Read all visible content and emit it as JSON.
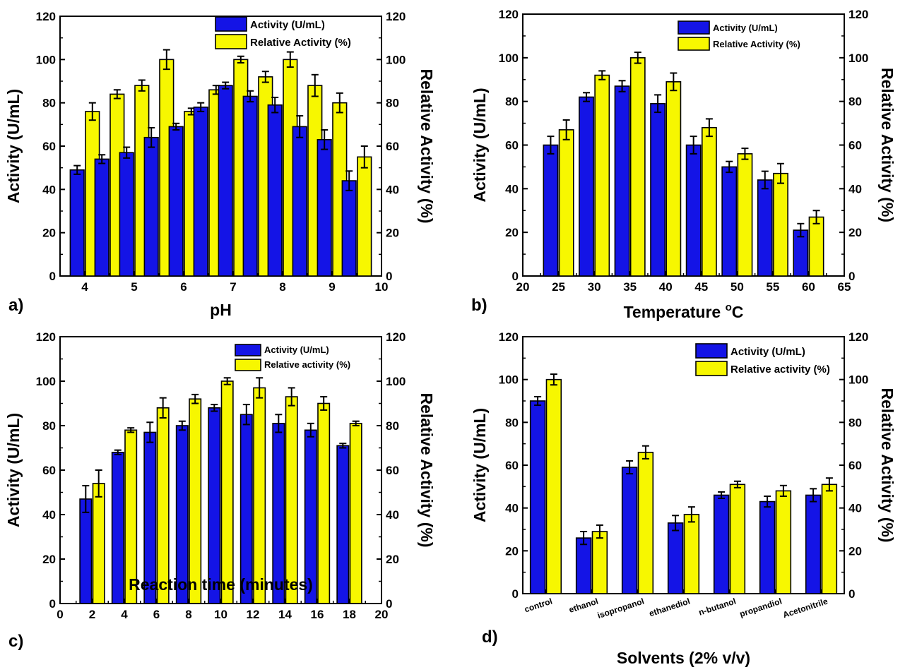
{
  "colors": {
    "activity": "#1414e6",
    "relative": "#f7f700",
    "stroke": "#000000"
  },
  "chart_data": [
    {
      "panel": "a)",
      "type": "bar",
      "xlabel": "pH",
      "ylabel": "Activity (U/mL)",
      "y2label": "Relative Activity (%)",
      "xaxis": "numeric",
      "xlim": [
        3.5,
        10
      ],
      "xticks": [
        4,
        5,
        6,
        7,
        8,
        9,
        10
      ],
      "ylim": [
        0,
        120
      ],
      "yticks": [
        0,
        20,
        40,
        60,
        80,
        100,
        120
      ],
      "y2ticks": [
        0,
        20,
        40,
        60,
        80,
        100,
        120
      ],
      "x": [
        4,
        4.5,
        5,
        5.5,
        6,
        6.5,
        7,
        7.5,
        8,
        8.5,
        9,
        9.5
      ],
      "legend_position": "top-right",
      "series": [
        {
          "name": "Activity (U/mL)",
          "values": [
            49,
            54,
            57,
            64,
            69,
            78,
            88,
            83,
            79,
            69,
            63,
            44
          ],
          "errors": [
            2,
            2,
            2.5,
            4.5,
            1.5,
            2,
            1.5,
            2.5,
            3.5,
            5,
            4.5,
            4.5
          ]
        },
        {
          "name": "Relative Activity (%)",
          "values": [
            76,
            84,
            88,
            100,
            76,
            86,
            100,
            92,
            100,
            88,
            80,
            55
          ],
          "errors": [
            4,
            2,
            2.5,
            4.5,
            1.5,
            2,
            1.5,
            2.5,
            3.5,
            5,
            4.5,
            5
          ]
        }
      ]
    },
    {
      "panel": "b)",
      "type": "bar",
      "xlabel": "Temperature ",
      "xlabel_sup": "o",
      "xlabel_after": "C",
      "ylabel": "Activity (U/mL)",
      "y2label": "Relative Activity (%)",
      "xaxis": "numeric",
      "xlim": [
        20,
        65
      ],
      "xticks": [
        20,
        25,
        30,
        35,
        40,
        45,
        50,
        55,
        60,
        65
      ],
      "ylim": [
        0,
        120
      ],
      "yticks": [
        0,
        20,
        40,
        60,
        80,
        100,
        120
      ],
      "y2ticks": [
        0,
        20,
        40,
        60,
        80,
        100,
        120
      ],
      "x": [
        25,
        30,
        35,
        40,
        45,
        50,
        55,
        60
      ],
      "legend_position": "top-right",
      "series": [
        {
          "name": "Activity (U/mL)",
          "values": [
            60,
            82,
            87,
            79,
            60,
            50,
            44,
            21
          ],
          "errors": [
            4,
            2,
            2.5,
            4,
            4,
            2.5,
            4,
            3
          ]
        },
        {
          "name": "Relative Activity (%)",
          "values": [
            67,
            92,
            100,
            89,
            68,
            56,
            47,
            27
          ],
          "errors": [
            4.5,
            2,
            2.5,
            4,
            4,
            2.5,
            4.5,
            3
          ]
        }
      ]
    },
    {
      "panel": "c)",
      "type": "bar",
      "xlabel": "Reaction time (minutes)",
      "ylabel": "Activity (U/mL)",
      "y2label": "Relative Activity (%)",
      "xaxis": "numeric",
      "xlim": [
        0,
        20
      ],
      "xticks": [
        0,
        2,
        4,
        6,
        8,
        10,
        12,
        14,
        16,
        18,
        20
      ],
      "ylim": [
        0,
        120
      ],
      "yticks": [
        0,
        20,
        40,
        60,
        80,
        100,
        120
      ],
      "y2ticks": [
        0,
        20,
        40,
        60,
        80,
        100,
        120
      ],
      "x": [
        2,
        4,
        6,
        8,
        10,
        12,
        14,
        16,
        18
      ],
      "legend_position": "top-right",
      "series": [
        {
          "name": "Activity (U/mL)",
          "values": [
            47,
            68,
            77,
            80,
            88,
            85,
            81,
            78,
            71
          ],
          "errors": [
            6,
            1,
            4.5,
            2,
            1.5,
            4.5,
            4,
            3,
            1
          ]
        },
        {
          "name": "Relative activity (%)",
          "values": [
            54,
            78,
            88,
            92,
            100,
            97,
            93,
            90,
            81
          ],
          "errors": [
            6,
            1,
            4.5,
            2,
            1.5,
            4.5,
            4,
            3,
            1
          ]
        }
      ]
    },
    {
      "panel": "d)",
      "type": "bar",
      "xlabel": "Solvents (2% v/v)",
      "ylabel": "Activity (U/mL)",
      "y2label": "Relative Activity (%)",
      "xaxis": "categorical",
      "categories": [
        "control",
        "ethanol",
        "isopropanol",
        "ethanediol",
        "n-butanol",
        "propandiol",
        "Acetonitrile"
      ],
      "ylim": [
        0,
        120
      ],
      "yticks": [
        0,
        20,
        40,
        60,
        80,
        100,
        120
      ],
      "y2ticks": [
        0,
        20,
        40,
        60,
        80,
        100,
        120
      ],
      "legend_position": "top-right",
      "series": [
        {
          "name": "Activity (U/mL)",
          "values": [
            90,
            26,
            59,
            33,
            46,
            43,
            46
          ],
          "errors": [
            2,
            3,
            3,
            3.5,
            1.5,
            2.5,
            3
          ]
        },
        {
          "name": "Relative activity (%)",
          "values": [
            100,
            29,
            66,
            37,
            51,
            48,
            51
          ],
          "errors": [
            2.5,
            3,
            3,
            3.5,
            1.5,
            2.5,
            3
          ]
        }
      ]
    }
  ]
}
